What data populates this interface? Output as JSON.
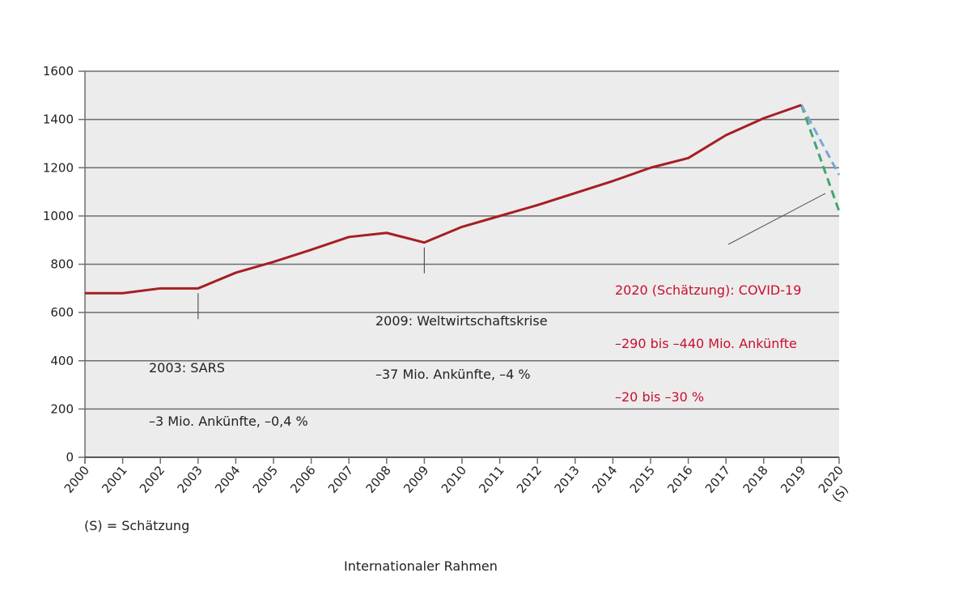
{
  "chart_data": {
    "type": "line",
    "title": "",
    "xlabel": "",
    "ylabel": "",
    "ylim": [
      0,
      1600
    ],
    "yticks": [
      0,
      200,
      400,
      600,
      800,
      1000,
      1200,
      1400,
      1600
    ],
    "grid": true,
    "categories": [
      "2000",
      "2001",
      "2002",
      "2003",
      "2004",
      "2005",
      "2006",
      "2007",
      "2008",
      "2009",
      "2010",
      "2011",
      "2012",
      "2013",
      "2014",
      "2015",
      "2016",
      "2017",
      "2018",
      "2019",
      "2020"
    ],
    "x_extra_label": "(S)",
    "series": [
      {
        "color": "#a61e22",
        "style": "solid",
        "x": [
          "2000",
          "2001",
          "2002",
          "2003",
          "2004",
          "2005",
          "2006",
          "2007",
          "2008",
          "2009",
          "2010",
          "2011",
          "2012",
          "2013",
          "2014",
          "2015",
          "2016",
          "2017",
          "2018",
          "2019"
        ],
        "values": [
          680,
          680,
          700,
          700,
          765,
          810,
          860,
          913,
          930,
          890,
          955,
          1000,
          1045,
          1095,
          1145,
          1200,
          1240,
          1335,
          1405,
          1460
        ]
      },
      {
        "color": "#7aa6d6",
        "style": "dashed",
        "x": [
          "2019",
          "2020"
        ],
        "values": [
          1460,
          1170
        ]
      },
      {
        "color": "#3fa66e",
        "style": "dashed",
        "x": [
          "2019",
          "2020"
        ],
        "values": [
          1460,
          1020
        ]
      }
    ],
    "annotations": [
      {
        "x": "2003",
        "lines": [
          "2003: SARS",
          "–3 Mio. Ankünfte, –0,4 %"
        ],
        "color": "#222222"
      },
      {
        "x": "2009",
        "lines": [
          "2009: Weltwirtschaftskrise",
          "–37 Mio. Ankünfte, –4 %"
        ],
        "color": "#222222"
      },
      {
        "x": "2020",
        "lines": [
          "2020 (Schätzung): COVID-19",
          "–290 bis –440 Mio. Ankünfte",
          "–20 bis –30 %"
        ],
        "color": "#c8102e"
      }
    ],
    "footnote": "(S) = Schätzung",
    "caption": "Internationaler Rahmen"
  }
}
